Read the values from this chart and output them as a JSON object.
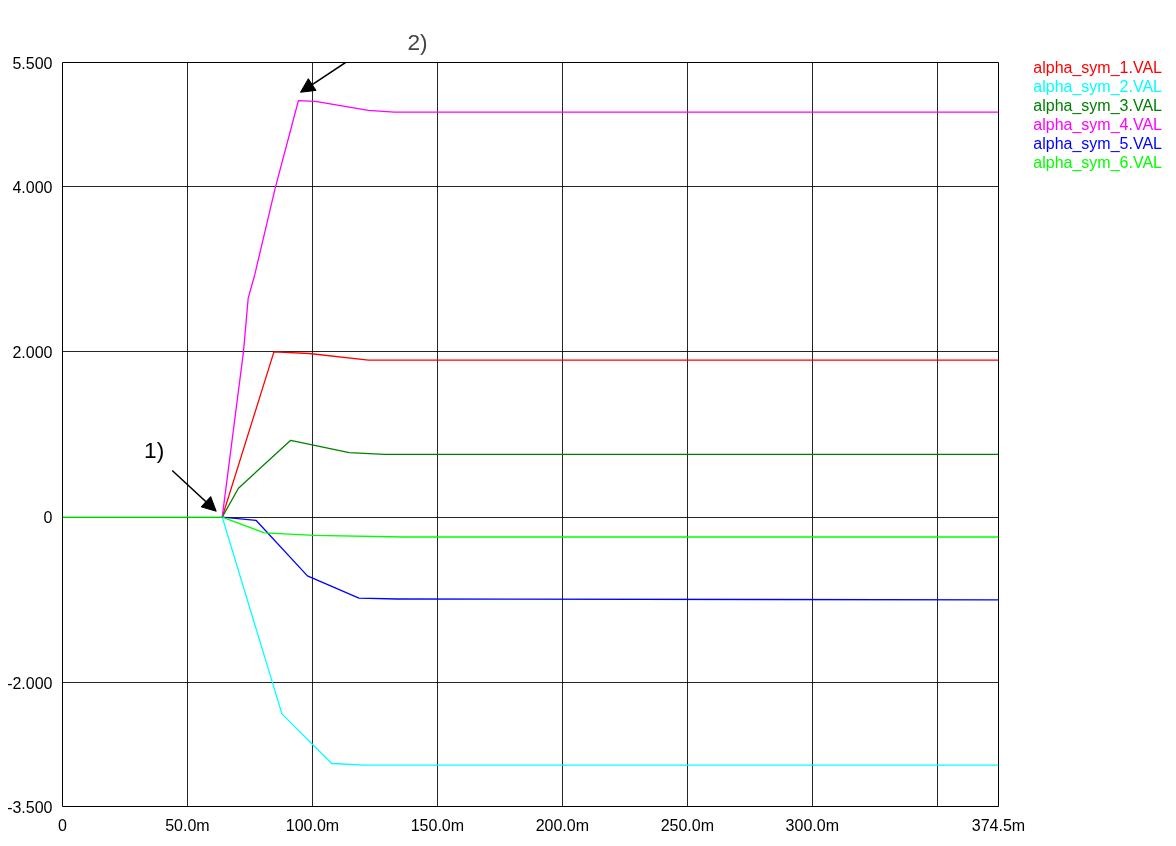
{
  "chart_data": {
    "type": "line",
    "xlim": [
      0,
      374.5
    ],
    "ylim": [
      -3.5,
      5.5
    ],
    "xticks": [
      0,
      {
        "value": 50,
        "label": "50.0m"
      },
      {
        "value": 100,
        "label": "100.0m"
      },
      {
        "value": 150,
        "label": "150.0m"
      },
      {
        "value": 200,
        "label": "200.0m"
      },
      {
        "value": 250,
        "label": "250.0m"
      },
      {
        "value": 300,
        "label": "300.0m"
      },
      {
        "value": 350,
        "label": null
      },
      {
        "value": 374.5,
        "label": "374.5m"
      }
    ],
    "yticks": [
      {
        "value": -3.5,
        "label": "-3.500"
      },
      {
        "value": -2,
        "label": "-2.000"
      },
      0,
      {
        "value": 2,
        "label": "2.000"
      },
      {
        "value": 4,
        "label": "4.000"
      },
      {
        "value": 5.5,
        "label": "5.500"
      }
    ],
    "grid": true,
    "line_style": "solid",
    "series": [
      {
        "name": "alpha_sym_1.VAL",
        "color": "#ff0000",
        "x": [
          63.9,
          84.6,
          98.7,
          122.4,
          374.5
        ],
        "values": [
          0,
          2.0,
          1.98,
          1.9,
          1.9
        ]
      },
      {
        "name": "alpha_sym_2.VAL",
        "color": "#00ffff",
        "x": [
          63.9,
          87.8,
          107.7,
          121.1,
          374.5
        ],
        "values": [
          0,
          -2.38,
          -2.98,
          -3.0,
          -3.0
        ]
      },
      {
        "name": "alpha_sym_3.VAL",
        "color": "#008000",
        "x": [
          63.9,
          70.4,
          91.3,
          114.7,
          128.8,
          374.5
        ],
        "values": [
          0,
          0.35,
          0.93,
          0.78,
          0.76,
          0.76
        ]
      },
      {
        "name": "alpha_sym_4.VAL",
        "color": "#ff00ff",
        "x": [
          63.9,
          72.4,
          74.3,
          76.9,
          85.1,
          94.4,
          101.2,
          122.4,
          132.7,
          374.5
        ],
        "values": [
          0,
          2.0,
          2.65,
          2.93,
          3.98,
          5.04,
          5.03,
          4.92,
          4.9,
          4.9
        ]
      },
      {
        "name": "alpha_sym_5.VAL",
        "color": "#0000ff",
        "x": [
          63.9,
          77.5,
          98,
          118.6,
          134,
          374.5
        ],
        "values": [
          0,
          -0.04,
          -0.71,
          -0.98,
          -0.99,
          -1.0
        ]
      },
      {
        "name": "alpha_sym_6.VAL",
        "color": "#00ff00",
        "x": [
          0,
          63.9,
          80.7,
          100.6,
          136.5,
          374.5
        ],
        "values": [
          0,
          0,
          -0.19,
          -0.22,
          -0.24,
          -0.24
        ]
      }
    ],
    "annotations": [
      {
        "text": "1)",
        "x": 63.9,
        "y": 0
      },
      "2)"
    ]
  }
}
